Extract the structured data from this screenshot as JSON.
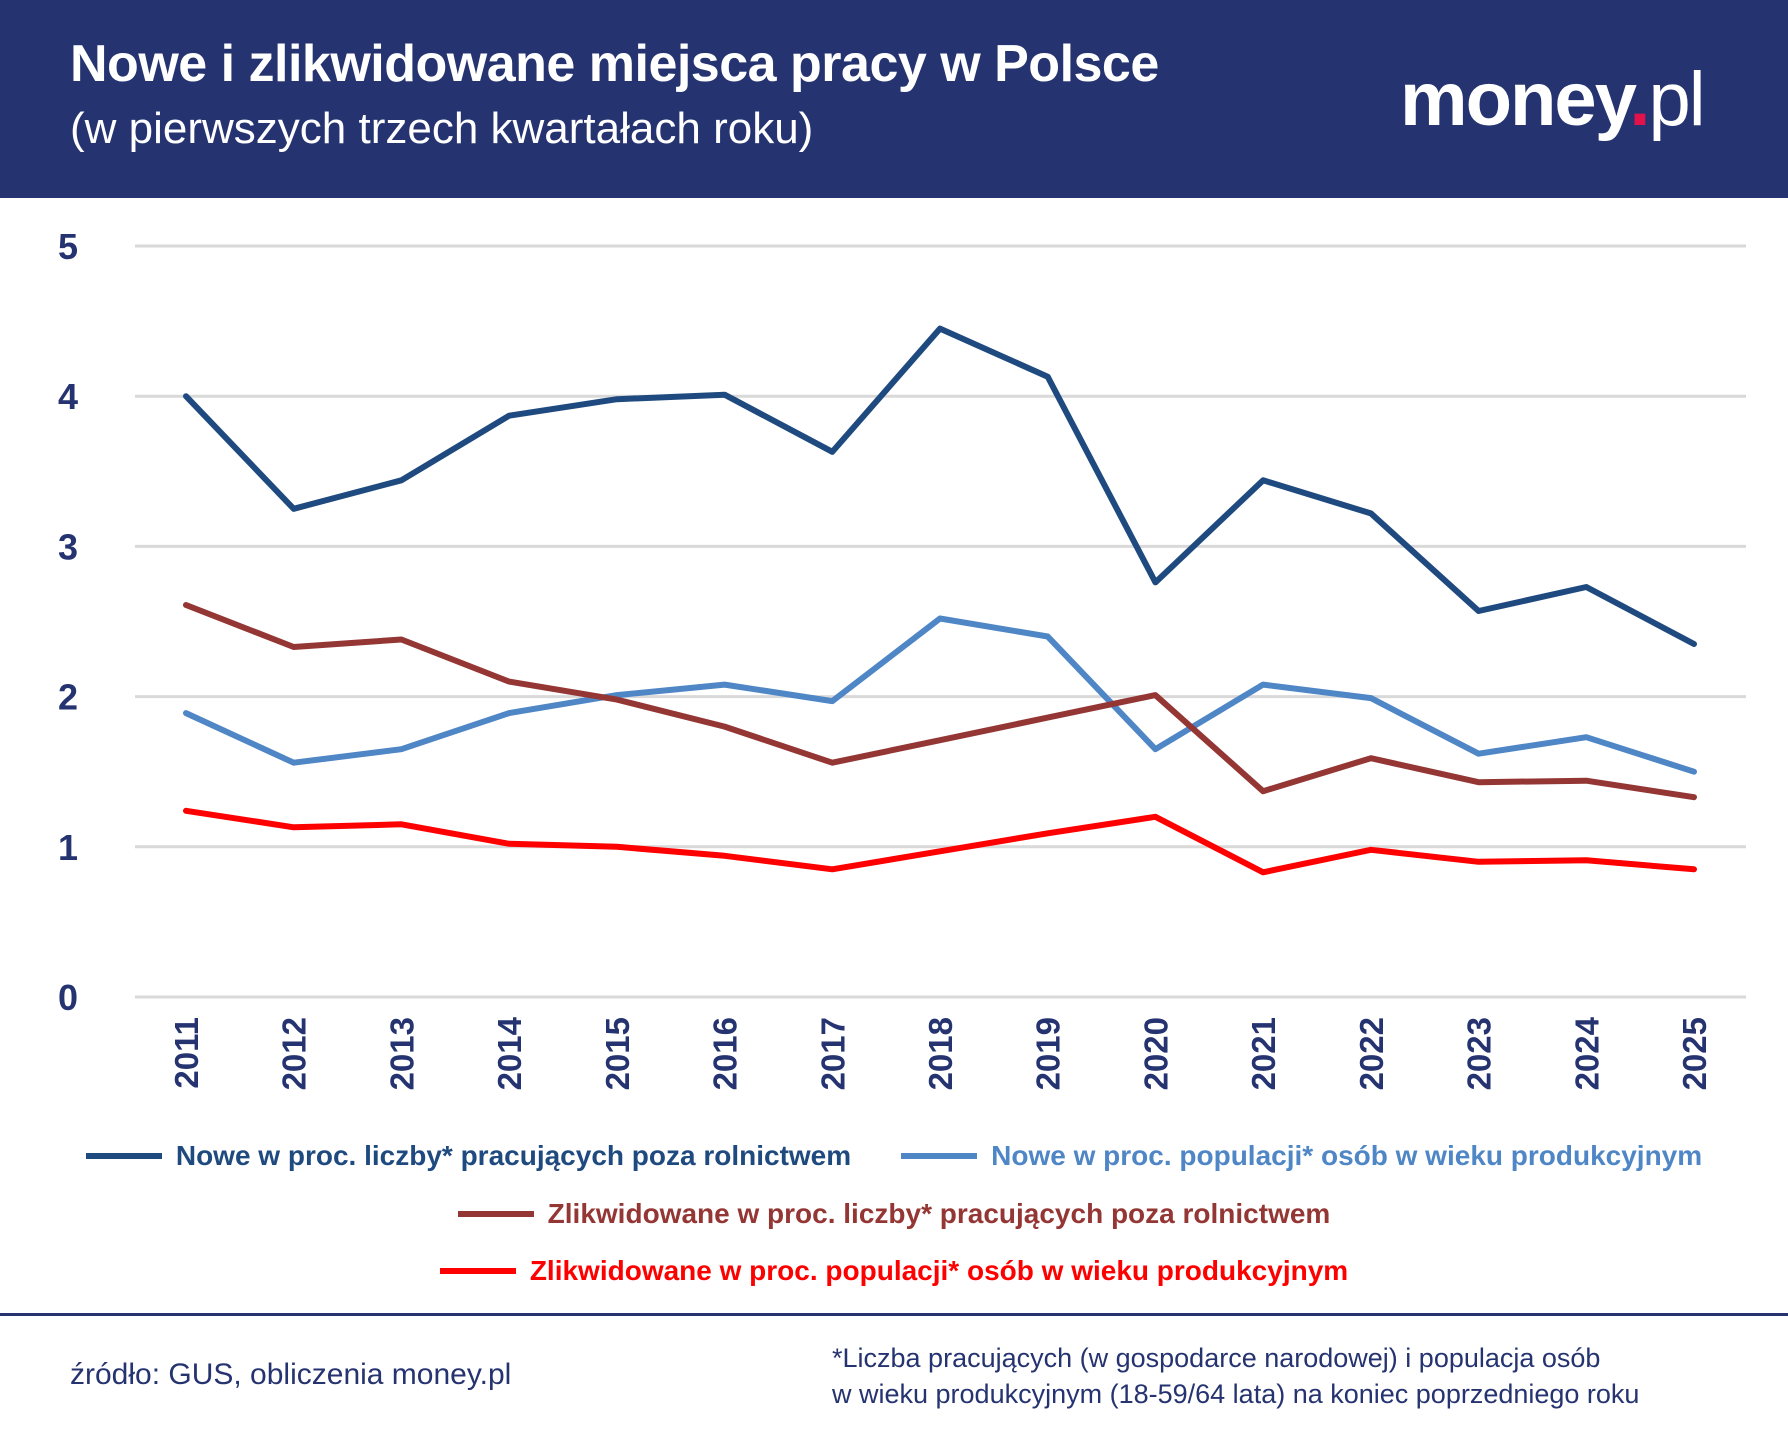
{
  "header": {
    "title": "Nowe i zlikwidowane miejsca pracy w Polsce",
    "subtitle": "(w pierwszych trzech kwartałach roku)",
    "logo": "money.pl",
    "background_color": "#253370"
  },
  "chart_data": {
    "type": "line",
    "title": "Nowe i zlikwidowane miejsca pracy w Polsce",
    "subtitle": "(w pierwszych trzech kwartałach roku)",
    "x": [
      "2011",
      "2012",
      "2013",
      "2014",
      "2015",
      "2016",
      "2017",
      "2018",
      "2019",
      "2020",
      "2021",
      "2022",
      "2023",
      "2024",
      "2025"
    ],
    "yticks": [
      "0",
      "1",
      "2",
      "3",
      "4",
      "5"
    ],
    "ylim": [
      0,
      5
    ],
    "grid": true,
    "legend_position": "bottom",
    "series": [
      {
        "name": "Nowe w proc. liczby* pracujących poza rolnictwem",
        "color": "#1f4a7f",
        "values": [
          4.0,
          3.25,
          3.44,
          3.87,
          3.98,
          4.01,
          3.63,
          4.45,
          4.13,
          2.76,
          3.44,
          3.22,
          2.57,
          2.73,
          2.35
        ]
      },
      {
        "name": "Nowe w proc. populacji* osób w wieku produkcyjnym",
        "color": "#4f86c6",
        "values": [
          1.89,
          1.56,
          1.65,
          1.89,
          2.01,
          2.08,
          1.97,
          2.52,
          2.4,
          1.65,
          2.08,
          1.99,
          1.62,
          1.73,
          1.5
        ]
      },
      {
        "name": "Zlikwidowane w proc. liczby* pracujących poza rolnictwem",
        "color": "#943634",
        "values": [
          2.61,
          2.33,
          2.38,
          2.1,
          1.98,
          1.8,
          1.56,
          1.71,
          1.86,
          2.01,
          1.37,
          1.59,
          1.43,
          1.44,
          1.33
        ]
      },
      {
        "name": "Zlikwidowane w proc. populacji* osób w wieku produkcyjnym",
        "color": "#ff0000",
        "values": [
          1.24,
          1.13,
          1.15,
          1.02,
          1.0,
          0.94,
          0.85,
          0.97,
          1.09,
          1.2,
          0.83,
          0.98,
          0.9,
          0.91,
          0.85
        ]
      }
    ]
  },
  "footer": {
    "source": "źródło: GUS, obliczenia money.pl",
    "note_line1": "*Liczba pracujących (w gospodarce narodowej) i populacja osób",
    "note_line2": "w wieku produkcyjnym (18-59/64 lata) na koniec poprzedniego roku"
  }
}
